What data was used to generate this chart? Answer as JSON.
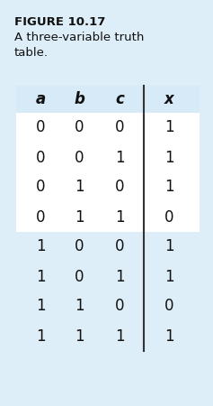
{
  "title_bold": "FIGURE 10.17",
  "title_regular": "A three-variable truth\ntable.",
  "headers": [
    "a",
    "b",
    "c",
    "x"
  ],
  "rows": [
    [
      0,
      0,
      0,
      1
    ],
    [
      0,
      0,
      1,
      1
    ],
    [
      0,
      1,
      0,
      1
    ],
    [
      0,
      1,
      1,
      0
    ],
    [
      1,
      0,
      0,
      1
    ],
    [
      1,
      0,
      1,
      1
    ],
    [
      1,
      1,
      0,
      0
    ],
    [
      1,
      1,
      1,
      1
    ]
  ],
  "header_bg": "#d6eaf8",
  "row_bg_light": "#ddeef8",
  "row_bg_white": "#ffffff",
  "outer_bg": "#ddeef8",
  "outer_border": "#a8d0e8",
  "fig_width": 2.37,
  "fig_height": 4.5,
  "dpi": 100
}
